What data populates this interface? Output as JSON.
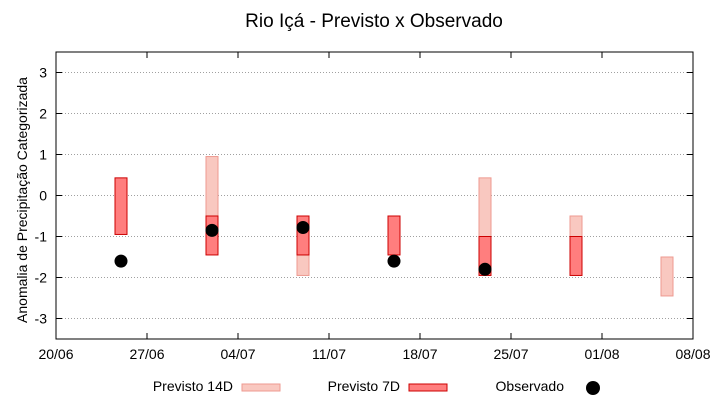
{
  "chart_data": {
    "type": "range-bar",
    "title": "Rio Içá - Previsto x Observado",
    "xlabel": "",
    "ylabel": "Anomalia de Precipitação Categorizada",
    "ylim": [
      -3.5,
      3.5
    ],
    "yticks": [
      -3,
      -2,
      -1,
      0,
      1,
      2,
      3
    ],
    "x_axis": {
      "type": "date",
      "range": [
        "2024-06-20",
        "2024-08-08"
      ],
      "ticks": [
        {
          "date": "2024-06-20",
          "label": "20/06"
        },
        {
          "date": "2024-06-27",
          "label": "27/06"
        },
        {
          "date": "2024-07-04",
          "label": "04/07"
        },
        {
          "date": "2024-07-11",
          "label": "11/07"
        },
        {
          "date": "2024-07-18",
          "label": "18/07"
        },
        {
          "date": "2024-07-25",
          "label": "25/07"
        },
        {
          "date": "2024-08-01",
          "label": "01/08"
        },
        {
          "date": "2024-08-08",
          "label": "08/08"
        }
      ]
    },
    "grid": "horizontal-dotted",
    "legend_position": "bottom",
    "colors": {
      "previsto14d_fill": "#f9c8c0",
      "previsto14d_stroke": "#ee9a90",
      "previsto7d_fill": "#ff7e7e",
      "previsto7d_stroke": "#cc0000",
      "observado": "#000000"
    },
    "series": [
      {
        "name": "Previsto 14D",
        "kind": "range",
        "points": [
          {
            "date": "2024-07-02",
            "low": -0.5,
            "high": 0.95
          },
          {
            "date": "2024-07-09",
            "low": -1.95,
            "high": -1.45
          },
          {
            "date": "2024-07-23",
            "low": -1.0,
            "high": 0.43
          },
          {
            "date": "2024-07-30",
            "low": -1.45,
            "high": -0.5
          },
          {
            "date": "2024-08-06",
            "low": -2.45,
            "high": -1.5
          }
        ]
      },
      {
        "name": "Previsto 7D",
        "kind": "range",
        "points": [
          {
            "date": "2024-06-25",
            "low": -0.95,
            "high": 0.43
          },
          {
            "date": "2024-07-02",
            "low": -1.45,
            "high": -0.5
          },
          {
            "date": "2024-07-09",
            "low": -1.45,
            "high": -0.5
          },
          {
            "date": "2024-07-16",
            "low": -1.45,
            "high": -0.5
          },
          {
            "date": "2024-07-23",
            "low": -1.95,
            "high": -1.0
          },
          {
            "date": "2024-07-30",
            "low": -1.95,
            "high": -1.0
          }
        ]
      },
      {
        "name": "Observado",
        "kind": "point",
        "points": [
          {
            "date": "2024-06-25",
            "value": -1.6
          },
          {
            "date": "2024-07-02",
            "value": -0.85
          },
          {
            "date": "2024-07-09",
            "value": -0.78
          },
          {
            "date": "2024-07-16",
            "value": -1.6
          },
          {
            "date": "2024-07-23",
            "value": -1.8
          }
        ]
      }
    ]
  }
}
